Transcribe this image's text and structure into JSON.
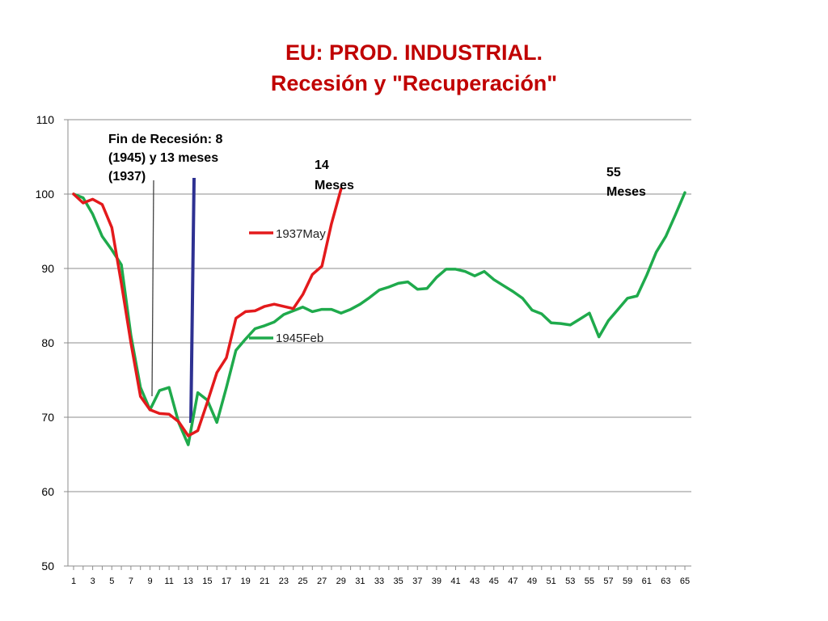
{
  "chart_data": {
    "type": "line",
    "title_line1": "EU: PROD. INDUSTRIAL.",
    "title_line2": "Recesión y \"Recuperación\"",
    "ylim": [
      50,
      110
    ],
    "yticks": [
      50,
      60,
      70,
      80,
      90,
      100,
      110
    ],
    "xlim": [
      1,
      65
    ],
    "xticks": [
      1,
      3,
      5,
      7,
      9,
      11,
      13,
      15,
      17,
      19,
      21,
      23,
      25,
      27,
      29,
      31,
      33,
      35,
      37,
      39,
      41,
      43,
      45,
      47,
      49,
      51,
      53,
      55,
      57,
      59,
      61,
      63,
      65
    ],
    "grid": true,
    "series": [
      {
        "name": "1937May",
        "color": "#e31a1c",
        "x": [
          1,
          2,
          3,
          4,
          5,
          6,
          7,
          8,
          9,
          10,
          11,
          12,
          13,
          14,
          15,
          16,
          17,
          18,
          19,
          20,
          21,
          22,
          23,
          24,
          25,
          26,
          27,
          28,
          29
        ],
        "values": [
          100,
          98.8,
          99.3,
          98.6,
          95.5,
          88,
          80,
          72.8,
          71,
          70.5,
          70.4,
          69.4,
          67.5,
          68.2,
          72,
          76,
          78,
          83.3,
          84.2,
          84.3,
          84.9,
          85.2,
          84.9,
          84.6,
          86.5,
          89.2,
          90.3,
          96,
          100.7
        ]
      },
      {
        "name": "1945Feb",
        "color": "#1faa4c",
        "x": [
          1,
          2,
          3,
          4,
          5,
          6,
          7,
          8,
          9,
          10,
          11,
          12,
          13,
          14,
          15,
          16,
          17,
          18,
          19,
          20,
          21,
          22,
          23,
          24,
          25,
          26,
          27,
          28,
          29,
          30,
          31,
          32,
          33,
          34,
          35,
          36,
          37,
          38,
          39,
          40,
          41,
          42,
          43,
          44,
          45,
          46,
          47,
          48,
          49,
          50,
          51,
          52,
          53,
          54,
          55,
          56,
          57,
          58,
          59,
          60,
          61,
          62,
          63,
          64,
          65
        ],
        "values": [
          100,
          99.5,
          97.3,
          94.3,
          92.5,
          90.5,
          81,
          74,
          71,
          73.6,
          74,
          69.3,
          66.3,
          73.3,
          72.3,
          69.3,
          74,
          79,
          80.5,
          81.9,
          82.3,
          82.8,
          83.8,
          84.3,
          84.8,
          84.2,
          84.5,
          84.5,
          84,
          84.5,
          85.2,
          86.1,
          87.1,
          87.5,
          88,
          88.2,
          87.2,
          87.3,
          88.8,
          89.9,
          89.9,
          89.6,
          89,
          89.6,
          88.5,
          87.7,
          86.9,
          86,
          84.4,
          83.9,
          82.7,
          82.6,
          82.4,
          83.2,
          84,
          80.8,
          83,
          84.5,
          86,
          86.3,
          89.1,
          92.2,
          94.3,
          97.2,
          100.2
        ]
      }
    ],
    "annotations": {
      "fin_recesion": [
        "Fin de Recesión: 8",
        "(1945) y 13 meses",
        "(1937)"
      ],
      "label_14": [
        "14",
        "Meses"
      ],
      "label_55": [
        "55",
        "Meses"
      ]
    }
  }
}
